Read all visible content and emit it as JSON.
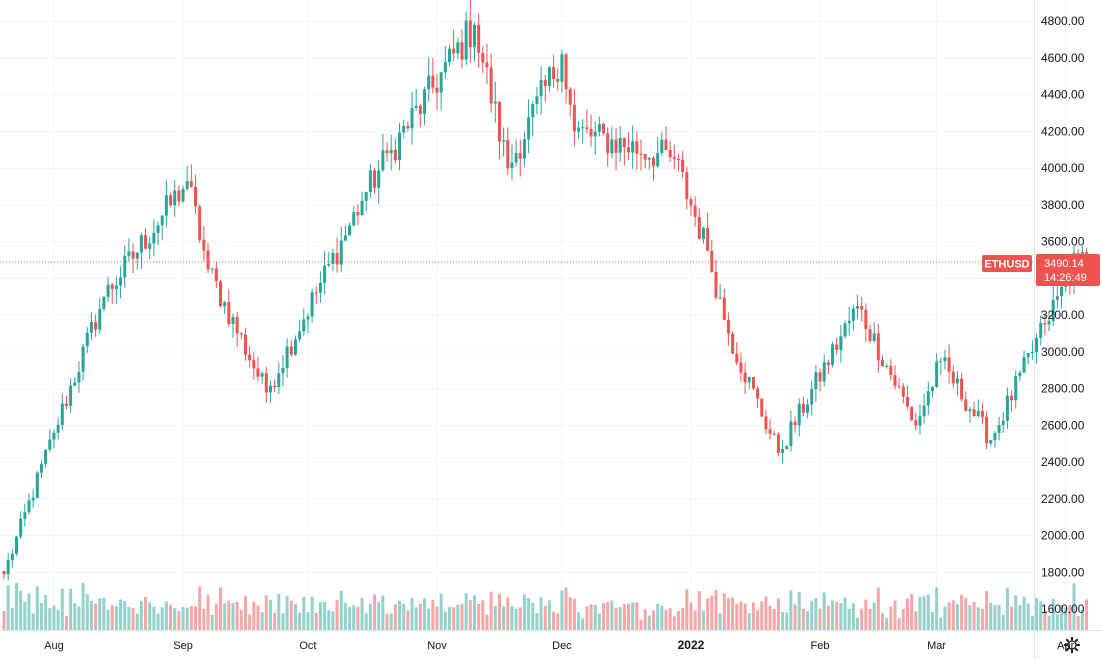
{
  "chart_data": {
    "type": "candlestick",
    "symbol": "ETHUSD",
    "last_price": "3490.14",
    "countdown": "14:26:49",
    "y_ticks": [
      "4800.00",
      "4600.00",
      "4400.00",
      "4200.00",
      "4000.00",
      "3800.00",
      "3600.00",
      "3400.00",
      "3200.00",
      "3000.00",
      "2800.00",
      "2600.00",
      "2400.00",
      "2200.00",
      "2000.00",
      "1800.00",
      "1600.00"
    ],
    "y_range": [
      1550,
      4900
    ],
    "x_labels": [
      "Aug",
      "Sep",
      "Oct",
      "Nov",
      "Dec",
      "2022",
      "Feb",
      "Mar",
      "Apr"
    ],
    "grid": true,
    "colors": {
      "up": "#26a69a",
      "down": "#ef5350",
      "up_volume": "#93d2cc",
      "down_volume": "#f6a6a4",
      "grid": "#f0f3fa",
      "price_line": "#ef5350"
    },
    "key_closes": [
      {
        "x": "2021-07-20",
        "y": 1790
      },
      {
        "x": "2021-08-01",
        "y": 2560
      },
      {
        "x": "2021-08-13",
        "y": 3300
      },
      {
        "x": "2021-09-02",
        "y": 3930
      },
      {
        "x": "2021-09-07",
        "y": 3450
      },
      {
        "x": "2021-09-21",
        "y": 2780
      },
      {
        "x": "2021-10-15",
        "y": 3870
      },
      {
        "x": "2021-10-21",
        "y": 4100
      },
      {
        "x": "2021-11-10",
        "y": 4780
      },
      {
        "x": "2021-11-18",
        "y": 4000
      },
      {
        "x": "2021-12-01",
        "y": 4620
      },
      {
        "x": "2021-12-04",
        "y": 4200
      },
      {
        "x": "2021-12-28",
        "y": 4050
      },
      {
        "x": "2022-01-05",
        "y": 3550
      },
      {
        "x": "2022-01-10",
        "y": 3100
      },
      {
        "x": "2022-01-22",
        "y": 2450
      },
      {
        "x": "2022-02-10",
        "y": 3250
      },
      {
        "x": "2022-02-24",
        "y": 2600
      },
      {
        "x": "2022-03-02",
        "y": 2950
      },
      {
        "x": "2022-03-14",
        "y": 2520
      },
      {
        "x": "2022-03-27",
        "y": 3150
      },
      {
        "x": "2022-04-04",
        "y": 3520
      },
      {
        "x": "2022-04-06",
        "y": 3490
      }
    ]
  },
  "toolbar": {
    "settings_icon": "gear-icon"
  }
}
